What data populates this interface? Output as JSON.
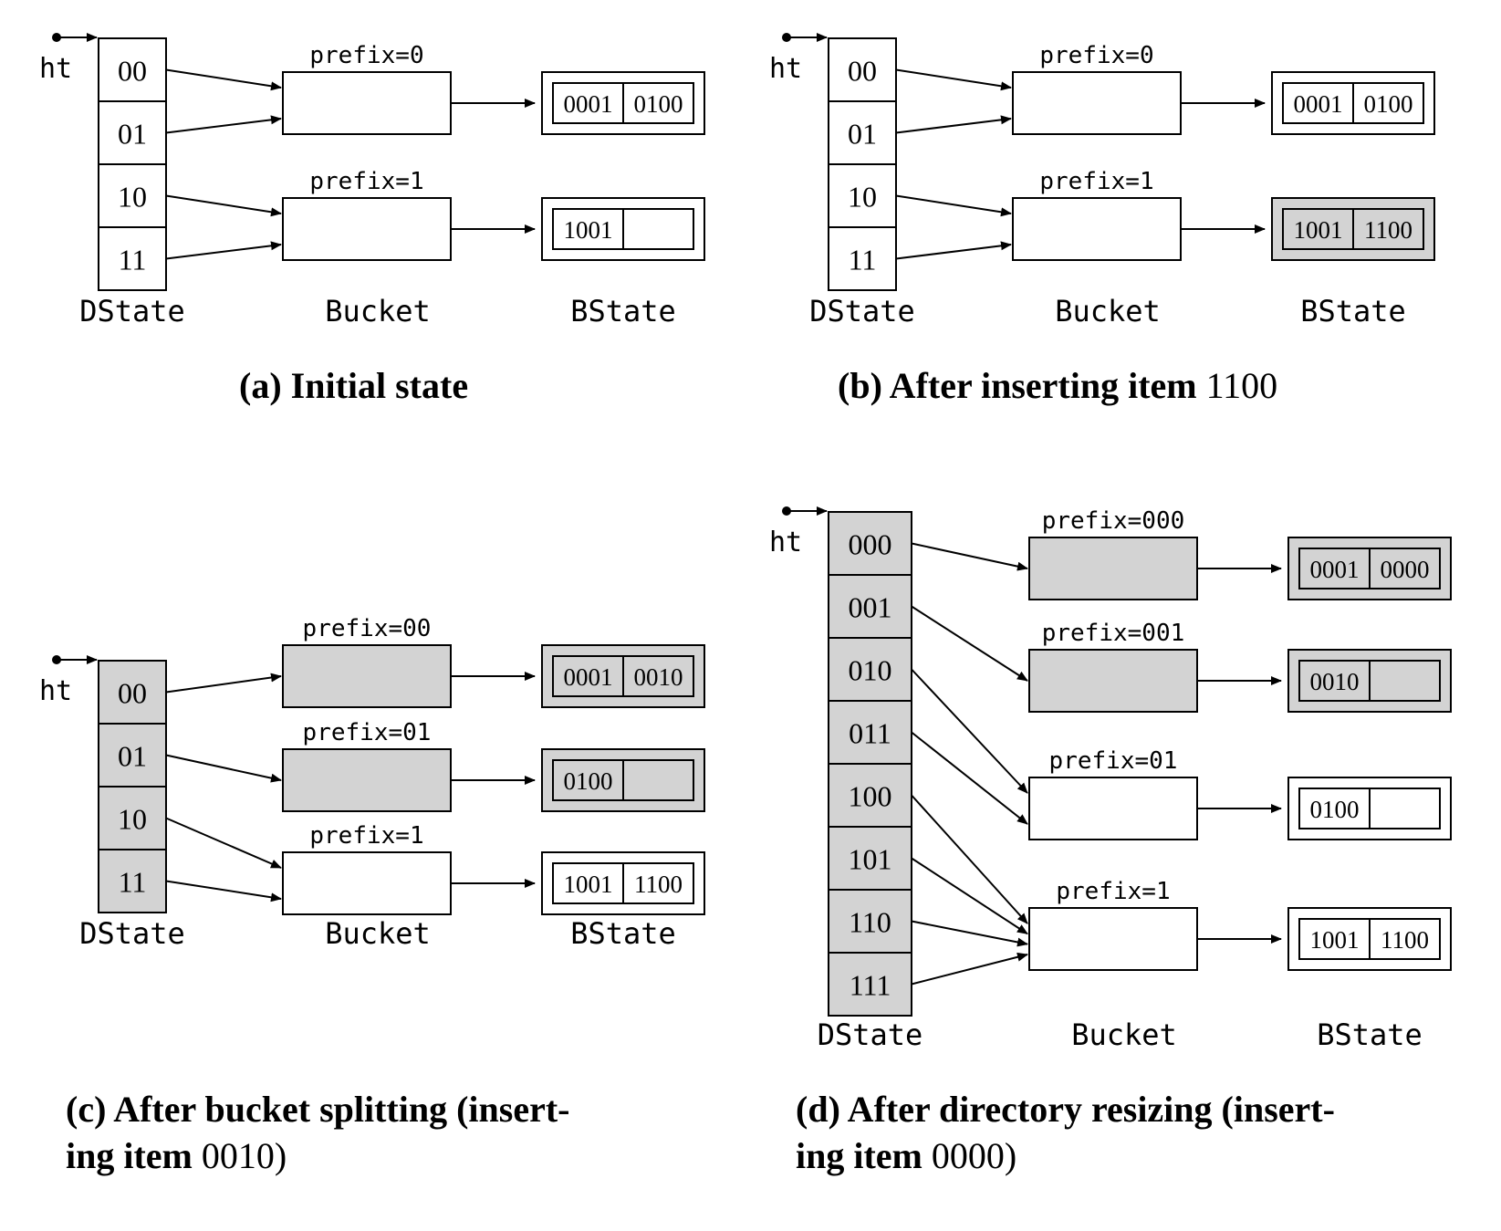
{
  "colors": {
    "stroke": "#000000",
    "shaded": "#d3d3d3",
    "plain": "#ffffff"
  },
  "panels": [
    {
      "id": "a",
      "caption_bold": "(a) Initial state",
      "caption_rest": "",
      "caption_line2_bold": "",
      "caption_line2_rest": "",
      "ht_label": "ht",
      "dstate_label": "DState",
      "bucket_label": "Bucket",
      "bstate_label": "BState",
      "dir_entries": [
        {
          "label": "00",
          "shaded": false,
          "target": 0
        },
        {
          "label": "01",
          "shaded": false,
          "target": 0
        },
        {
          "label": "10",
          "shaded": false,
          "target": 1
        },
        {
          "label": "11",
          "shaded": false,
          "target": 1
        }
      ],
      "buckets": [
        {
          "prefix": "prefix=0",
          "shaded": false,
          "bstate_shaded": false,
          "items": [
            "0001",
            "0100"
          ]
        },
        {
          "prefix": "prefix=1",
          "shaded": false,
          "bstate_shaded": false,
          "items": [
            "1001",
            ""
          ]
        }
      ]
    },
    {
      "id": "b",
      "caption_bold": "(b) After inserting item",
      "caption_rest": " 1100",
      "caption_line2_bold": "",
      "caption_line2_rest": "",
      "ht_label": "ht",
      "dstate_label": "DState",
      "bucket_label": "Bucket",
      "bstate_label": "BState",
      "dir_entries": [
        {
          "label": "00",
          "shaded": false,
          "target": 0
        },
        {
          "label": "01",
          "shaded": false,
          "target": 0
        },
        {
          "label": "10",
          "shaded": false,
          "target": 1
        },
        {
          "label": "11",
          "shaded": false,
          "target": 1
        }
      ],
      "buckets": [
        {
          "prefix": "prefix=0",
          "shaded": false,
          "bstate_shaded": false,
          "items": [
            "0001",
            "0100"
          ]
        },
        {
          "prefix": "prefix=1",
          "shaded": false,
          "bstate_shaded": true,
          "items": [
            "1001",
            "1100"
          ]
        }
      ]
    },
    {
      "id": "c",
      "caption_bold": "(c) After bucket splitting (insert-",
      "caption_rest": "",
      "caption_line2_bold": "ing item",
      "caption_line2_rest": " 0010)",
      "ht_label": "ht",
      "dstate_label": "DState",
      "bucket_label": "Bucket",
      "bstate_label": "BState",
      "dir_entries": [
        {
          "label": "00",
          "shaded": true,
          "target": 0
        },
        {
          "label": "01",
          "shaded": true,
          "target": 1
        },
        {
          "label": "10",
          "shaded": true,
          "target": 2
        },
        {
          "label": "11",
          "shaded": true,
          "target": 2
        }
      ],
      "buckets": [
        {
          "prefix": "prefix=00",
          "shaded": true,
          "bstate_shaded": true,
          "items": [
            "0001",
            "0010"
          ]
        },
        {
          "prefix": "prefix=01",
          "shaded": true,
          "bstate_shaded": true,
          "items": [
            "0100",
            ""
          ]
        },
        {
          "prefix": "prefix=1",
          "shaded": false,
          "bstate_shaded": false,
          "items": [
            "1001",
            "1100"
          ]
        }
      ]
    },
    {
      "id": "d",
      "caption_bold": "(d) After directory resizing (insert-",
      "caption_rest": "",
      "caption_line2_bold": "ing item",
      "caption_line2_rest": " 0000)",
      "ht_label": "ht",
      "dstate_label": "DState",
      "bucket_label": "Bucket",
      "bstate_label": "BState",
      "dir_entries": [
        {
          "label": "000",
          "shaded": true,
          "target": 0
        },
        {
          "label": "001",
          "shaded": true,
          "target": 1
        },
        {
          "label": "010",
          "shaded": true,
          "target": 2
        },
        {
          "label": "011",
          "shaded": true,
          "target": 2
        },
        {
          "label": "100",
          "shaded": true,
          "target": 3
        },
        {
          "label": "101",
          "shaded": true,
          "target": 3
        },
        {
          "label": "110",
          "shaded": true,
          "target": 3
        },
        {
          "label": "111",
          "shaded": true,
          "target": 3
        }
      ],
      "buckets": [
        {
          "prefix": "prefix=000",
          "shaded": true,
          "bstate_shaded": true,
          "items": [
            "0001",
            "0000"
          ]
        },
        {
          "prefix": "prefix=001",
          "shaded": true,
          "bstate_shaded": true,
          "items": [
            "0010",
            ""
          ]
        },
        {
          "prefix": "prefix=01",
          "shaded": false,
          "bstate_shaded": false,
          "items": [
            "0100",
            ""
          ]
        },
        {
          "prefix": "prefix=1",
          "shaded": false,
          "bstate_shaded": false,
          "items": [
            "1001",
            "1100"
          ]
        }
      ]
    }
  ]
}
